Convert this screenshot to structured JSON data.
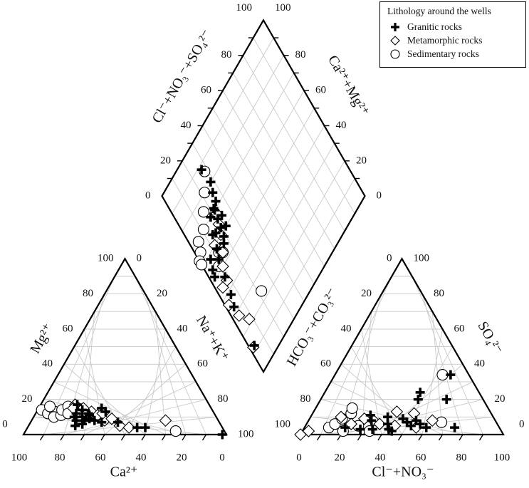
{
  "chart_data": {
    "type": "scatter",
    "title": "",
    "subtitle": "",
    "legend": {
      "title": "Lithology around the wells",
      "position": "top-right",
      "entries": [
        {
          "name": "Granitic rocks",
          "marker": "plus"
        },
        {
          "name": "Metamorphic rocks",
          "marker": "diamond"
        },
        {
          "name": "Sedimentary rocks",
          "marker": "circle"
        }
      ]
    },
    "ticks": [
      "0",
      "20",
      "40",
      "60",
      "80",
      "100"
    ],
    "cation_triangle": {
      "labels": {
        "bottom": "Ca²⁺",
        "left": "Mg²⁺",
        "right": "Na⁺+K⁺"
      },
      "units": "% meq",
      "series": [
        {
          "name": "Granitic rocks",
          "points": [
            {
              "ca": 64,
              "mg": 14
            },
            {
              "ca": 65,
              "mg": 17
            },
            {
              "ca": 62,
              "mg": 12
            },
            {
              "ca": 70,
              "mg": 10
            },
            {
              "ca": 68,
              "mg": 12
            },
            {
              "ca": 66,
              "mg": 10
            },
            {
              "ca": 63,
              "mg": 9
            },
            {
              "ca": 61,
              "mg": 8
            },
            {
              "ca": 68,
              "mg": 6
            },
            {
              "ca": 62,
              "mg": 11
            },
            {
              "ca": 58,
              "mg": 7
            },
            {
              "ca": 54,
              "mg": 15
            },
            {
              "ca": 53,
              "mg": 13
            },
            {
              "ca": 50,
              "mg": 7
            },
            {
              "ca": 42,
              "mg": 4
            },
            {
              "ca": 38,
              "mg": 4
            },
            {
              "ca": 72,
              "mg": 5
            },
            {
              "ca": 2,
              "mg": 0
            },
            {
              "ca": 70,
              "mg": 8
            },
            {
              "ca": 66,
              "mg": 8
            }
          ]
        },
        {
          "name": "Metamorphic rocks",
          "points": [
            {
              "ca": 66,
              "mg": 17
            },
            {
              "ca": 63,
              "mg": 15
            },
            {
              "ca": 60,
              "mg": 13
            },
            {
              "ca": 64,
              "mg": 11
            },
            {
              "ca": 58,
              "mg": 11
            },
            {
              "ca": 56,
              "mg": 8
            },
            {
              "ca": 52,
              "mg": 9
            },
            {
              "ca": 50,
              "mg": 5
            },
            {
              "ca": 46,
              "mg": 4
            },
            {
              "ca": 26,
              "mg": 8
            },
            {
              "ca": 68,
              "mg": 15
            },
            {
              "ca": 55,
              "mg": 12
            }
          ]
        },
        {
          "name": "Sedimentary rocks",
          "points": [
            {
              "ca": 84,
              "mg": 14
            },
            {
              "ca": 82,
              "mg": 12
            },
            {
              "ca": 78,
              "mg": 13
            },
            {
              "ca": 80,
              "mg": 10
            },
            {
              "ca": 76,
              "mg": 11
            },
            {
              "ca": 74,
              "mg": 14
            },
            {
              "ca": 70,
              "mg": 16
            },
            {
              "ca": 72,
              "mg": 12
            },
            {
              "ca": 24,
              "mg": 2
            },
            {
              "ca": 79,
              "mg": 16
            }
          ]
        }
      ]
    },
    "anion_triangle": {
      "labels": {
        "bottom": "Cl⁻+NO₃⁻",
        "left": "HCO₃⁻+CO₃²⁻",
        "right": "SO₄²⁻"
      },
      "units": "% meq",
      "series": [
        {
          "name": "Granitic rocks",
          "points": [
            {
              "cl": 31,
              "so4": 8
            },
            {
              "cl": 38,
              "so4": 10
            },
            {
              "cl": 40,
              "so4": 6
            },
            {
              "cl": 46,
              "so4": 9
            },
            {
              "cl": 49,
              "so4": 7
            },
            {
              "cl": 52,
              "so4": 5
            },
            {
              "cl": 28,
              "so4": 3
            },
            {
              "cl": 34,
              "so4": 3
            },
            {
              "cl": 42,
              "so4": 3
            },
            {
              "cl": 60,
              "so4": 4
            },
            {
              "cl": 47,
              "so4": 24
            },
            {
              "cl": 48,
              "so4": 20
            },
            {
              "cl": 57,
              "so4": 34
            },
            {
              "cl": 62,
              "so4": 20
            },
            {
              "cl": 74,
              "so4": 4
            },
            {
              "cl": 53,
              "so4": 8
            },
            {
              "cl": 56,
              "so4": 6
            },
            {
              "cl": 44,
              "so4": 2
            },
            {
              "cl": 20,
              "so4": 4
            },
            {
              "cl": 29,
              "so4": 11
            }
          ]
        },
        {
          "name": "Metamorphic rocks",
          "points": [
            {
              "cl": 22,
              "so4": 6
            },
            {
              "cl": 27,
              "so4": 9
            },
            {
              "cl": 32,
              "so4": 8
            },
            {
              "cl": 36,
              "so4": 6
            },
            {
              "cl": 41,
              "so4": 13
            },
            {
              "cl": 44,
              "so4": 5
            },
            {
              "cl": 50,
              "so4": 12
            },
            {
              "cl": 55,
              "so4": 4
            },
            {
              "cl": 61,
              "so4": 8
            },
            {
              "cl": 0,
              "so4": 0
            },
            {
              "cl": 3,
              "so4": 2
            },
            {
              "cl": 15,
              "so4": 10
            }
          ]
        },
        {
          "name": "Sedimentary rocks",
          "points": [
            {
              "cl": 12,
              "so4": 4
            },
            {
              "cl": 14,
              "so4": 6
            },
            {
              "cl": 16,
              "so4": 9
            },
            {
              "cl": 19,
              "so4": 12
            },
            {
              "cl": 18,
              "so4": 15
            },
            {
              "cl": 26,
              "so4": 5
            },
            {
              "cl": 33,
              "so4": 2
            },
            {
              "cl": 53,
              "so4": 34
            },
            {
              "cl": 66,
              "so4": 7
            },
            {
              "cl": 20,
              "so4": 2
            }
          ]
        }
      ]
    },
    "diamond": {
      "labels": {
        "upper_left": "Cl⁻+NO₃⁻+SO₄²⁻",
        "upper_right": "Ca²⁺+Mg²⁺"
      },
      "units": "% meq",
      "series": [
        {
          "name": "Granitic rocks",
          "points": [
            {
              "anion_cl_so4": 27,
              "cation_ca_mg": 88
            },
            {
              "anion_cl_so4": 28,
              "cation_ca_mg": 80
            },
            {
              "anion_cl_so4": 26,
              "cation_ca_mg": 76
            },
            {
              "anion_cl_so4": 25,
              "cation_ca_mg": 72
            },
            {
              "anion_cl_so4": 22,
              "cation_ca_mg": 70
            },
            {
              "anion_cl_so4": 18,
              "cation_ca_mg": 70
            },
            {
              "anion_cl_so4": 21,
              "cation_ca_mg": 66
            },
            {
              "anion_cl_so4": 24,
              "cation_ca_mg": 65
            },
            {
              "anion_cl_so4": 20,
              "cation_ca_mg": 62
            },
            {
              "anion_cl_so4": 23,
              "cation_ca_mg": 60
            },
            {
              "anion_cl_so4": 19,
              "cation_ca_mg": 58
            },
            {
              "anion_cl_so4": 16,
              "cation_ca_mg": 63
            },
            {
              "anion_cl_so4": 14,
              "cation_ca_mg": 64
            },
            {
              "anion_cl_so4": 17,
              "cation_ca_mg": 56
            },
            {
              "anion_cl_so4": 10,
              "cation_ca_mg": 54
            },
            {
              "anion_cl_so4": 6,
              "cation_ca_mg": 58
            },
            {
              "anion_cl_so4": 8,
              "cation_ca_mg": 46
            },
            {
              "anion_cl_so4": 4,
              "cation_ca_mg": 54
            },
            {
              "anion_cl_so4": 3,
              "cation_ca_mg": 51
            },
            {
              "anion_cl_so4": 6,
              "cation_ca_mg": 38
            },
            {
              "anion_cl_so4": 4,
              "cation_ca_mg": 33
            },
            {
              "anion_cl_so4": 12,
              "cation_ca_mg": 58
            },
            {
              "anion_cl_so4": 3,
              "cation_ca_mg": 12
            },
            {
              "anion_cl_so4": 22,
              "cation_ca_mg": 71
            }
          ]
        },
        {
          "name": "Metamorphic rocks",
          "points": [
            {
              "anion_cl_so4": 22,
              "cation_ca_mg": 68
            },
            {
              "anion_cl_so4": 20,
              "cation_ca_mg": 64
            },
            {
              "anion_cl_so4": 18,
              "cation_ca_mg": 60
            },
            {
              "anion_cl_so4": 12,
              "cation_ca_mg": 60
            },
            {
              "anion_cl_so4": 10,
              "cation_ca_mg": 50
            },
            {
              "anion_cl_so4": 8,
              "cation_ca_mg": 44
            },
            {
              "anion_cl_so4": 4,
              "cation_ca_mg": 44
            },
            {
              "anion_cl_so4": 2,
              "cation_ca_mg": 36
            },
            {
              "anion_cl_so4": 4,
              "cation_ca_mg": 28
            },
            {
              "anion_cl_so4": 8,
              "cation_ca_mg": 22
            },
            {
              "anion_cl_so4": 2,
              "cation_ca_mg": 12
            },
            {
              "anion_cl_so4": 14,
              "cation_ca_mg": 54
            }
          ]
        },
        {
          "name": "Sedimentary rocks",
          "points": [
            {
              "anion_cl_so4": 28,
              "cation_ca_mg": 86
            },
            {
              "anion_cl_so4": 22,
              "cation_ca_mg": 80
            },
            {
              "anion_cl_so4": 16,
              "cation_ca_mg": 75
            },
            {
              "anion_cl_so4": 11,
              "cation_ca_mg": 70
            },
            {
              "anion_cl_so4": 5,
              "cation_ca_mg": 69
            },
            {
              "anion_cl_so4": 3,
              "cation_ca_mg": 65
            },
            {
              "anion_cl_so4": 8,
              "cation_ca_mg": 52
            },
            {
              "anion_cl_so4": 0,
              "cation_ca_mg": 63
            },
            {
              "anion_cl_so4": 0,
              "cation_ca_mg": 61
            },
            {
              "anion_cl_so4": 12,
              "cation_ca_mg": 56
            },
            {
              "anion_cl_so4": 14,
              "cation_ca_mg": 54
            },
            {
              "anion_cl_so4": 22,
              "cation_ca_mg": 24
            }
          ]
        }
      ]
    }
  }
}
